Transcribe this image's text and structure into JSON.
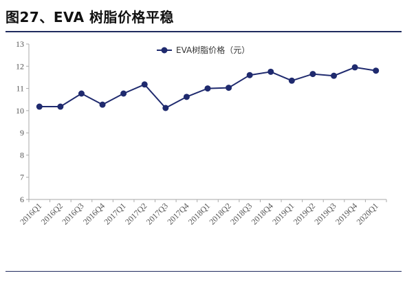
{
  "figure": {
    "title": "图27、EVA 树脂价格平稳"
  },
  "chart_data": {
    "type": "line",
    "title": "",
    "xlabel": "",
    "ylabel": "",
    "categories": [
      "2016Q1",
      "2016Q2",
      "2016Q3",
      "2016Q4",
      "2017Q1",
      "2017Q2",
      "2017Q3",
      "2017Q4",
      "2018Q1",
      "2018Q2",
      "2018Q3",
      "2018Q4",
      "2019Q1",
      "2019Q2",
      "2019Q3",
      "2019Q4",
      "2020Q1"
    ],
    "series": [
      {
        "name": "EVA树脂价格（元）",
        "values": [
          10.18,
          10.18,
          10.77,
          10.27,
          10.77,
          11.18,
          10.12,
          10.62,
          11.0,
          11.03,
          11.6,
          11.75,
          11.35,
          11.65,
          11.57,
          11.95,
          11.8
        ]
      }
    ],
    "yticks": [
      "6",
      "7",
      "8",
      "9",
      "10",
      "11",
      "12",
      "13"
    ],
    "ylim": [
      6,
      13
    ],
    "grid": false,
    "legend": "top-center",
    "colors": {
      "line": "#1f2a6e",
      "marker": "#1f2a6e",
      "axis": "#aaaaaa"
    }
  }
}
